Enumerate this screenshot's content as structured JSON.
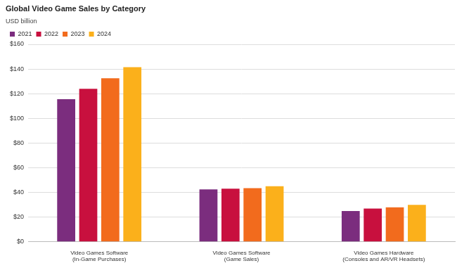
{
  "chart_data": {
    "type": "bar",
    "title": "Global Video Game Sales by Category",
    "subtitle": "USD billion",
    "categories": [
      "Video Games Software\n(In-Game Purchases)",
      "Video Games Software\n(Game Sales)",
      "Video Games Hardware\n(Consoles and AR/VR Headsets)"
    ],
    "series": [
      {
        "name": "2021",
        "color": "#7b2d7e",
        "values": [
          115.5,
          42.5,
          25
        ]
      },
      {
        "name": "2022",
        "color": "#c8103e",
        "values": [
          124,
          43,
          27
        ]
      },
      {
        "name": "2023",
        "color": "#f26b1d",
        "values": [
          132.5,
          43.5,
          28
        ]
      },
      {
        "name": "2024",
        "color": "#fbb01b",
        "values": [
          141.5,
          45,
          30
        ]
      }
    ],
    "ylim": [
      0,
      160
    ],
    "yticks": [
      {
        "value": 0,
        "label": "$0"
      },
      {
        "value": 20,
        "label": "$20"
      },
      {
        "value": 40,
        "label": "$40"
      },
      {
        "value": 60,
        "label": "$60"
      },
      {
        "value": 80,
        "label": "$80"
      },
      {
        "value": 100,
        "label": "$100"
      },
      {
        "value": 120,
        "label": "$120"
      },
      {
        "value": 140,
        "label": "$140"
      },
      {
        "value": 160,
        "label": "$160"
      }
    ],
    "grid": true,
    "legend": "top-left"
  }
}
